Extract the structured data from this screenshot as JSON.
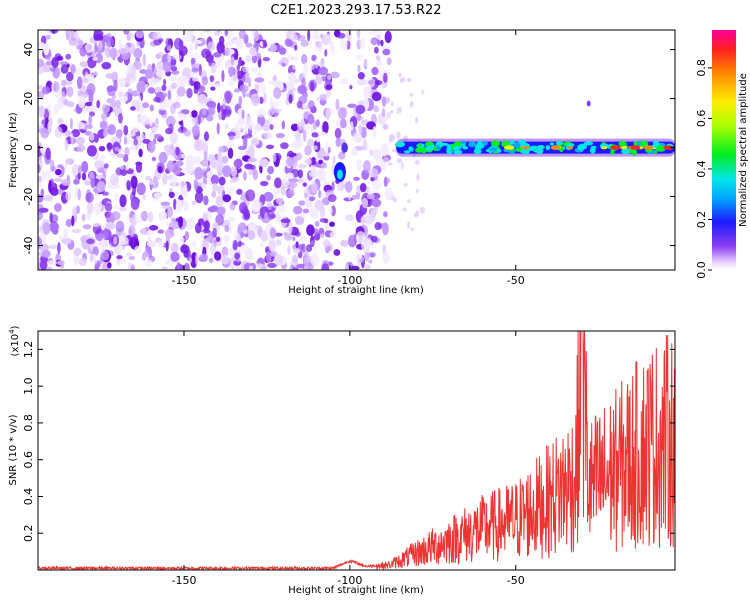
{
  "title": "C2E1.2023.293.17.53.R22",
  "colors": {
    "spectrogram_noise": "#8a3cf0",
    "snr_line": "#ee3333"
  },
  "chart_data": [
    {
      "type": "heatmap",
      "name": "spectrogram",
      "xlabel": "Height of straight line (km)",
      "ylabel": "Frequency (Hz)",
      "xlim": [
        -194,
        -2
      ],
      "ylim": [
        -50,
        48
      ],
      "x_ticks": [
        -150,
        -100,
        -50
      ],
      "y_ticks": [
        40,
        20,
        0,
        -20,
        -40
      ],
      "grid": false,
      "colorbar": {
        "label": "Normalized spectral amplitude",
        "range": [
          0,
          0.95
        ],
        "ticks": [
          0.0,
          0.2,
          0.4,
          0.6,
          0.8
        ],
        "colormap": "rainbow"
      },
      "signal_track": {
        "x_start": -86,
        "x_end": -2,
        "frequency": 0,
        "early_burst": {
          "x": -103,
          "frequency": -10
        }
      },
      "noise_region": {
        "x_start": -194,
        "x_end": -88
      }
    },
    {
      "type": "line",
      "name": "snr",
      "xlabel": "Height of straight line (km)",
      "ylabel": "SNR (10 * v/v)",
      "y_multiplier": "(x10",
      "y_multiplier_exp": "4",
      "y_multiplier_close": ")",
      "xlim": [
        -194,
        -2
      ],
      "ylim": [
        0,
        1.3
      ],
      "x_ticks": [
        -150,
        -100,
        -50
      ],
      "y_ticks": [
        0.2,
        0.4,
        0.6,
        0.8,
        1.0,
        1.2
      ],
      "grid": false,
      "key_points": {
        "x": [
          -194,
          -105,
          -100,
          -95,
          -88,
          -80,
          -70,
          -60,
          -50,
          -40,
          -32,
          -30,
          -28,
          -20,
          -10,
          -2
        ],
        "y": [
          0.01,
          0.01,
          0.05,
          0.02,
          0.03,
          0.1,
          0.18,
          0.25,
          0.3,
          0.42,
          0.55,
          1.3,
          0.5,
          0.6,
          0.75,
          0.8
        ]
      }
    }
  ]
}
